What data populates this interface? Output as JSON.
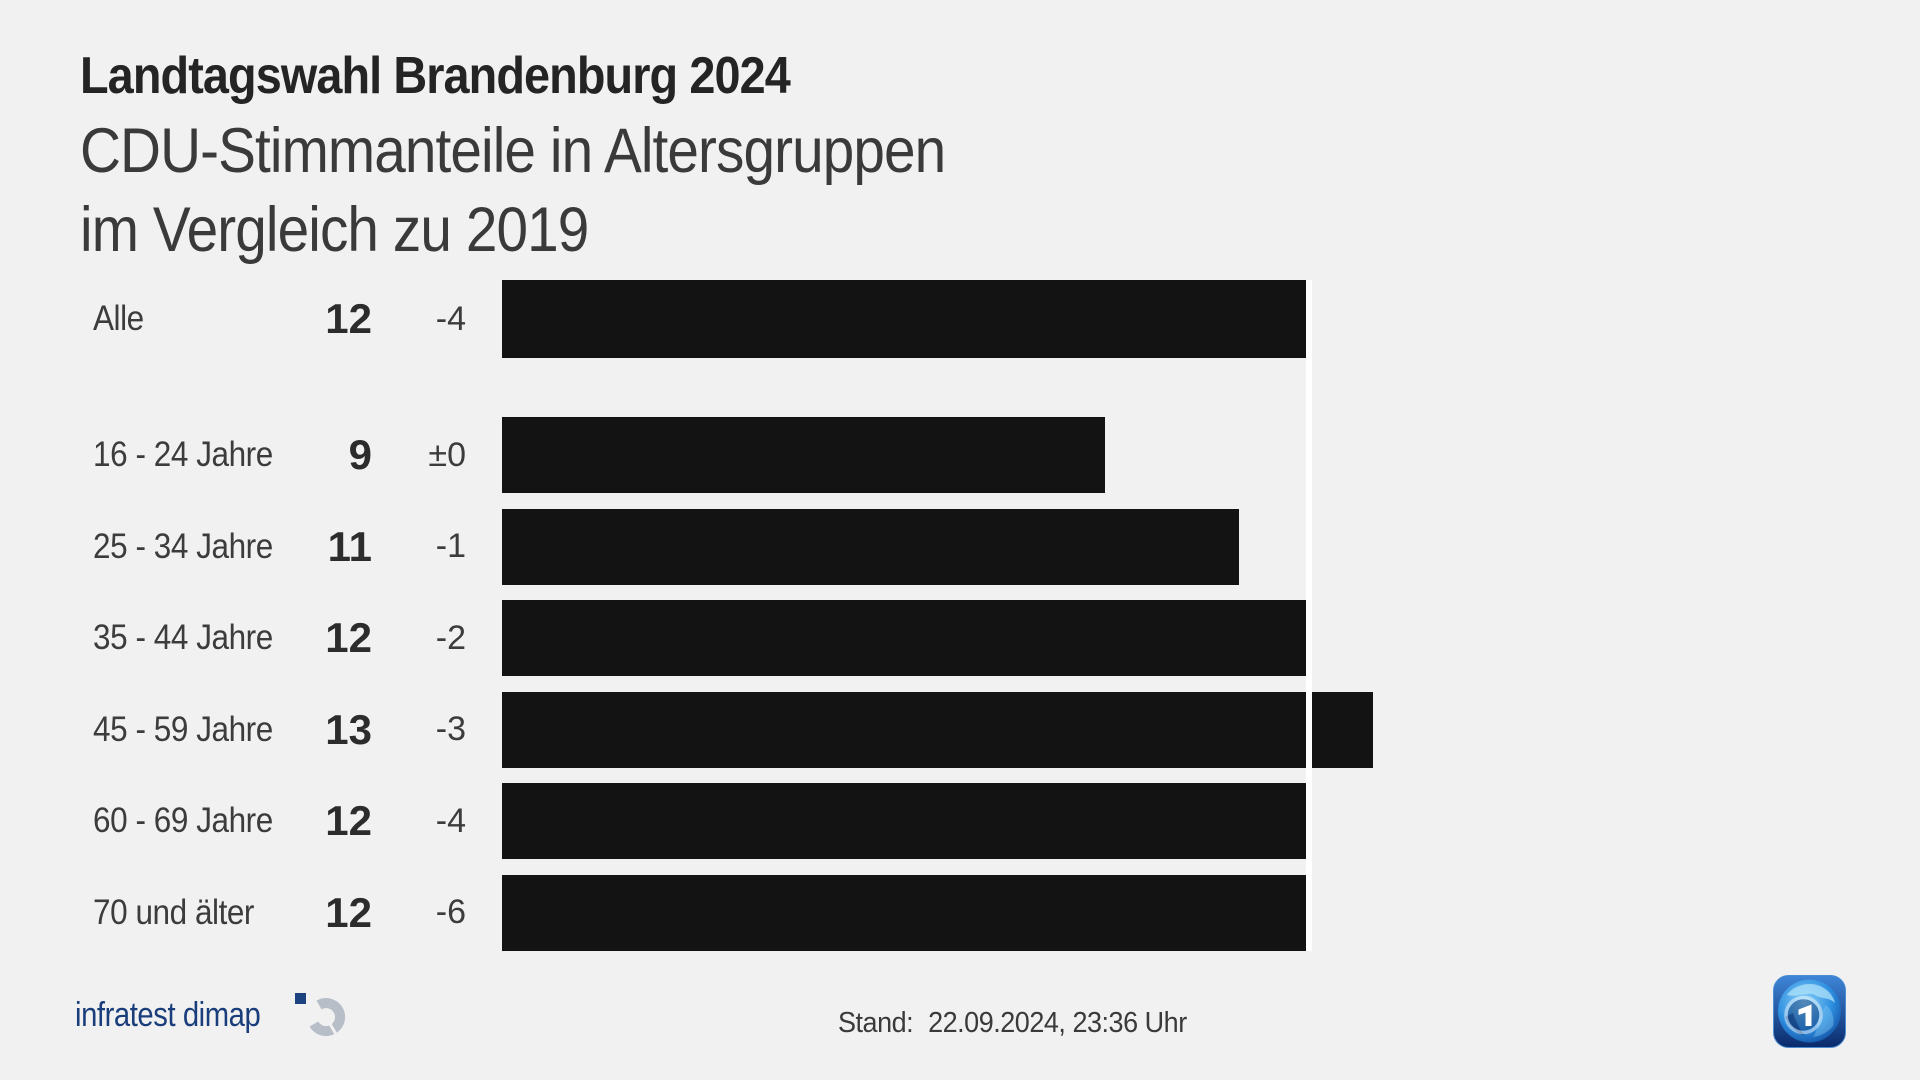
{
  "header": {
    "kicker": "Landtagswahl Brandenburg 2024",
    "title_line1": "CDU-Stimmanteile in Altersgruppen",
    "title_line2": "im Vergleich zu 2019"
  },
  "chart_data": {
    "type": "bar",
    "title": "Landtagswahl Brandenburg 2024 — CDU-Stimmanteile in Altersgruppen im Vergleich zu 2019",
    "orientation": "horizontal",
    "categories": [
      "Alle",
      "16 - 24 Jahre",
      "25 - 34 Jahre",
      "35 - 44 Jahre",
      "45 - 59 Jahre",
      "60 - 69 Jahre",
      "70 und älter"
    ],
    "values": [
      12,
      9,
      11,
      12,
      13,
      12,
      12
    ],
    "changes": [
      "-4",
      "±0",
      "-1",
      "-2",
      "-3",
      "-4",
      "-6"
    ],
    "rows": [
      {
        "label": "Alle",
        "value": "12",
        "value_num": 12,
        "change": "-4"
      },
      {
        "label": "16 - 24 Jahre",
        "value": "9",
        "value_num": 9,
        "change": "±0"
      },
      {
        "label": "25 - 34 Jahre",
        "value": "11",
        "value_num": 11,
        "change": "-1"
      },
      {
        "label": "35 - 44 Jahre",
        "value": "12",
        "value_num": 12,
        "change": "-2"
      },
      {
        "label": "45 - 59 Jahre",
        "value": "13",
        "value_num": 13,
        "change": "-3"
      },
      {
        "label": "60 - 69 Jahre",
        "value": "12",
        "value_num": 12,
        "change": "-4"
      },
      {
        "label": "70 und älter",
        "value": "12",
        "value_num": 12,
        "change": "-6"
      }
    ],
    "reference_line_value": 12,
    "xlim": [
      0,
      13.3
    ],
    "grid": false,
    "legend": false,
    "bar_color": "#131313",
    "reference_line_color": "#ffffff",
    "background_color": "#f1f1f1"
  },
  "footer": {
    "source_wordmark": "infratest dimap",
    "stand_label": "Stand:",
    "stand_value": "22.09.2024, 23:36 Uhr"
  },
  "colors": {
    "title": "#242424",
    "subtitle": "#3a3a3a",
    "label_text": "#3c3c3c",
    "value_text": "#2c2c2c",
    "infratest_navy": "#1a3e7c",
    "infratest_gray": "#b7bec8",
    "ard_blue_dark": "#0a2a6b",
    "ard_blue_light": "#3f86d8"
  }
}
